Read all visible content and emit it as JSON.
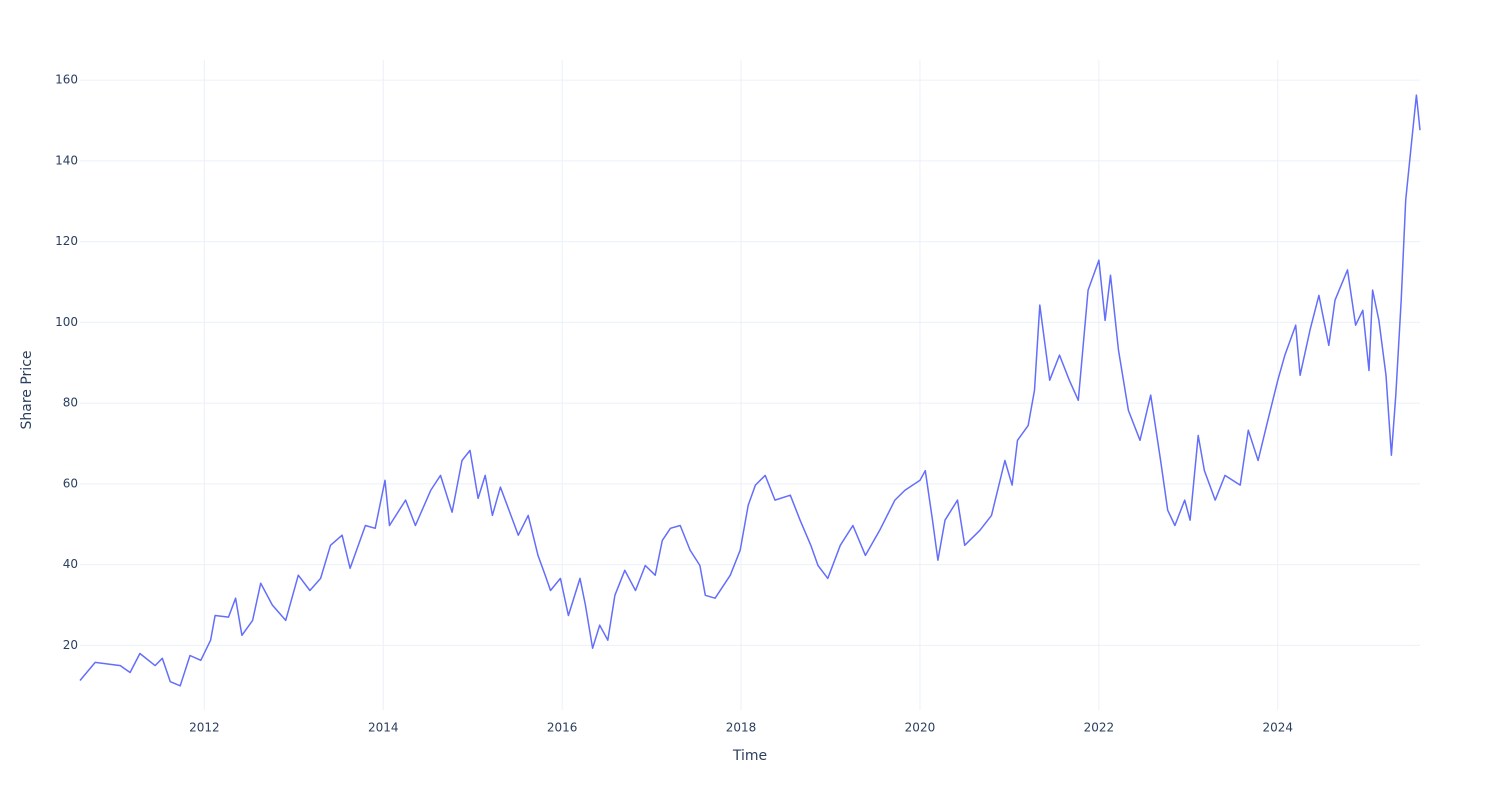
{
  "chart_data": {
    "type": "line",
    "x_label": "Time",
    "y_label": "Share Price",
    "color": "#636efa",
    "grid": true,
    "xlim": [
      2010.61,
      2025.59
    ],
    "ylim": [
      4,
      165
    ],
    "xticks": [
      2012,
      2014,
      2016,
      2018,
      2020,
      2022,
      2024
    ],
    "yticks": [
      20,
      40,
      60,
      80,
      100,
      120,
      140,
      160
    ],
    "x": [
      2010.61,
      2010.78,
      2011.06,
      2011.17,
      2011.28,
      2011.45,
      2011.53,
      2011.62,
      2011.73,
      2011.84,
      2011.96,
      2012.07,
      2012.12,
      2012.27,
      2012.35,
      2012.42,
      2012.54,
      2012.63,
      2012.76,
      2012.91,
      2013.05,
      2013.18,
      2013.3,
      2013.41,
      2013.54,
      2013.63,
      2013.8,
      2013.91,
      2014.02,
      2014.07,
      2014.25,
      2014.36,
      2014.53,
      2014.64,
      2014.77,
      2014.88,
      2014.97,
      2015.06,
      2015.14,
      2015.22,
      2015.31,
      2015.51,
      2015.62,
      2015.73,
      2015.81,
      2015.87,
      2015.98,
      2016.07,
      2016.2,
      2016.26,
      2016.34,
      2016.42,
      2016.51,
      2016.59,
      2016.7,
      2016.82,
      2016.93,
      2017.04,
      2017.12,
      2017.21,
      2017.32,
      2017.43,
      2017.54,
      2017.6,
      2017.71,
      2017.88,
      2017.99,
      2018.08,
      2018.16,
      2018.27,
      2018.38,
      2018.55,
      2018.66,
      2018.78,
      2018.86,
      2018.97,
      2019.11,
      2019.25,
      2019.39,
      2019.55,
      2019.72,
      2019.83,
      2020.0,
      2020.06,
      2020.14,
      2020.2,
      2020.28,
      2020.42,
      2020.5,
      2020.67,
      2020.8,
      2020.95,
      2021.03,
      2021.09,
      2021.21,
      2021.28,
      2021.34,
      2021.45,
      2021.56,
      2021.67,
      2021.77,
      2021.88,
      2022.0,
      2022.07,
      2022.13,
      2022.22,
      2022.33,
      2022.46,
      2022.58,
      2022.69,
      2022.77,
      2022.85,
      2022.96,
      2023.02,
      2023.11,
      2023.18,
      2023.3,
      2023.41,
      2023.58,
      2023.67,
      2023.78,
      2023.89,
      2024.0,
      2024.08,
      2024.2,
      2024.25,
      2024.36,
      2024.46,
      2024.57,
      2024.64,
      2024.78,
      2024.87,
      2024.95,
      2025.02,
      2025.06,
      2025.13,
      2025.21,
      2025.27,
      2025.32,
      2025.38,
      2025.43,
      2025.51,
      2025.55,
      2025.59
    ],
    "values": [
      11.3,
      15.8,
      15,
      13.3,
      18,
      15,
      16.8,
      11,
      10,
      17.5,
      16.3,
      21.3,
      27.4,
      27,
      31.7,
      22.5,
      26.2,
      35.4,
      30,
      26.2,
      37.4,
      33.6,
      36.6,
      44.8,
      47.3,
      39.1,
      49.7,
      49,
      60.9,
      49.7,
      56,
      49.7,
      58.4,
      62.1,
      53,
      65.8,
      68.3,
      56.4,
      62.1,
      52.2,
      59.2,
      47.3,
      52.2,
      42.3,
      37.4,
      33.6,
      36.6,
      27.4,
      36.6,
      30,
      19.3,
      25,
      21.3,
      32.4,
      38.6,
      33.6,
      39.8,
      37.4,
      46,
      49,
      49.7,
      43.6,
      39.8,
      32.4,
      31.7,
      37.4,
      43.6,
      54.7,
      59.7,
      62.1,
      56,
      57.2,
      51,
      44.8,
      39.8,
      36.6,
      44.8,
      49.7,
      42.3,
      48.5,
      56,
      58.4,
      60.9,
      63.3,
      51,
      41.1,
      51,
      56,
      44.8,
      48.5,
      52.2,
      65.8,
      59.7,
      70.8,
      74.5,
      83.2,
      104.3,
      85.7,
      91.9,
      85.7,
      80.7,
      108,
      115.4,
      100.5,
      111.7,
      93.1,
      78.2,
      70.8,
      82,
      65.8,
      53.5,
      49.7,
      56,
      51,
      72,
      63.3,
      56,
      62.1,
      59.7,
      73.3,
      65.8,
      75.8,
      85.7,
      91.9,
      99.3,
      86.9,
      98.1,
      106.7,
      94.3,
      105.5,
      113,
      99.3,
      103,
      88.1,
      108,
      100.5,
      86.9,
      67.1,
      82,
      105.5,
      130.3,
      147.6,
      156.3,
      147.6
    ]
  }
}
